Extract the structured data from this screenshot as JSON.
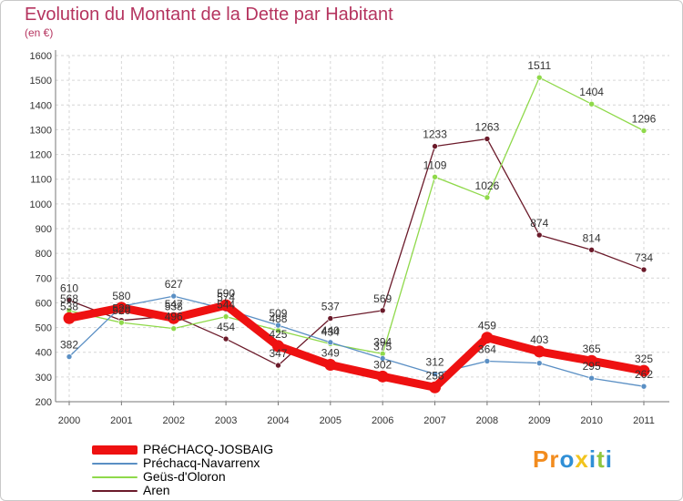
{
  "chart_data": {
    "type": "line",
    "title": "Evolution du Montant de la Dette par Habitant",
    "subtitle": "(en €)",
    "xlabel": "",
    "ylabel": "",
    "ylim": [
      200,
      1600
    ],
    "yticks": [
      200,
      300,
      400,
      500,
      600,
      700,
      800,
      900,
      1000,
      1100,
      1200,
      1300,
      1400,
      1500,
      1600
    ],
    "x": [
      "2000",
      "2001",
      "2002",
      "2003",
      "2004",
      "2005",
      "2006",
      "2007",
      "2008",
      "2009",
      "2010",
      "2011"
    ],
    "grid": true,
    "legend_position": "bottom-left",
    "series": [
      {
        "name": "Aren",
        "color": "#6b1a2a",
        "values": [
          610,
          529,
          547,
          454,
          347,
          537,
          569,
          1233,
          1263,
          874,
          814,
          734
        ],
        "labels": [
          "610",
          "529",
          "547",
          "454",
          "347",
          "537",
          "569",
          "1233",
          "1263",
          "874",
          "814",
          "734"
        ]
      },
      {
        "name": "Geüs-d'Oloron",
        "color": "#8fd94a",
        "values": [
          568,
          520,
          496,
          544,
          488,
          434,
          394,
          1109,
          1026,
          1511,
          1404,
          1296
        ],
        "labels": [
          "568",
          "520",
          "496",
          "544",
          "488",
          "434",
          "394",
          "1109",
          "1026",
          "1511",
          "1404",
          "1296"
        ]
      },
      {
        "name": "Préchacq-Navarrenx",
        "color": "#5a8fc4",
        "values": [
          382,
          586,
          627,
          574,
          509,
          440,
          375,
          312,
          364,
          356,
          295,
          262
        ],
        "labels": [
          "382",
          "",
          "627",
          "574",
          "509",
          "440",
          "375",
          "312",
          "364",
          "",
          "295",
          "262"
        ]
      },
      {
        "name": "PRéCHACQ-JOSBAIG",
        "color": "#ee1111",
        "values": [
          538,
          580,
          538,
          590,
          425,
          349,
          302,
          258,
          459,
          403,
          365,
          325
        ],
        "labels": [
          "538",
          "580",
          "538",
          "590",
          "425",
          "349",
          "302",
          "258",
          "459",
          "403",
          "365",
          "325"
        ]
      }
    ]
  },
  "legend": {
    "items": [
      {
        "label": "PRéCHACQ-JOSBAIG",
        "color": "#ee1111"
      },
      {
        "label": "Préchacq-Navarrenx",
        "color": "#5a8fc4"
      },
      {
        "label": "Geüs-d'Oloron",
        "color": "#8fd94a"
      },
      {
        "label": "Aren",
        "color": "#6b1a2a"
      }
    ]
  },
  "brand": {
    "letters": [
      "P",
      "r",
      "o",
      "x",
      "i",
      "t",
      "i"
    ],
    "colors": [
      "#f28c1e",
      "#f28c1e",
      "#2f8fd6",
      "#f2c41e",
      "#2f8fd6",
      "#8fc63e",
      "#2f8fd6"
    ]
  }
}
